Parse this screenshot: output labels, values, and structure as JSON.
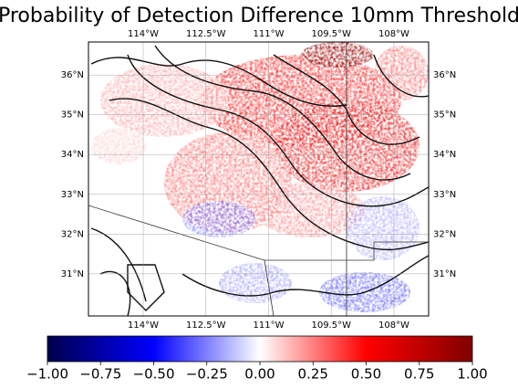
{
  "title": "Probability of Detection Difference 10mm Threshold",
  "map": {
    "lonlim": [
      -115.31,
      -107.17
    ],
    "latlim": [
      29.94,
      36.83
    ],
    "grid": true,
    "lon_ticks": [
      {
        "value": -114,
        "label": "114°W"
      },
      {
        "value": -112.5,
        "label": "112.5°W"
      },
      {
        "value": -111,
        "label": "111°W"
      },
      {
        "value": -109.5,
        "label": "109.5°W"
      },
      {
        "value": -108,
        "label": "108°W"
      }
    ],
    "lat_ticks": [
      {
        "value": 36,
        "label": "36°N"
      },
      {
        "value": 35,
        "label": "35°N"
      },
      {
        "value": 34,
        "label": "34°N"
      },
      {
        "value": 33,
        "label": "33°N"
      },
      {
        "value": 32,
        "label": "32°N"
      },
      {
        "value": 31,
        "label": "31°N"
      }
    ]
  },
  "colorbar": {
    "lim": [
      -1,
      1
    ],
    "colors": [
      "#00004c",
      "#0000ff",
      "#ffffff",
      "#ff0000",
      "#800000"
    ],
    "ticks": [
      {
        "value": -1,
        "label": "−1.00"
      },
      {
        "value": -0.75,
        "label": "−0.75"
      },
      {
        "value": -0.5,
        "label": "−0.50"
      },
      {
        "value": -0.25,
        "label": "−0.25"
      },
      {
        "value": 0,
        "label": "0.00"
      },
      0.25,
      {
        "value": 0.5,
        "label": "0.50"
      },
      0.75,
      {
        "value": 1,
        "label": "1.00"
      }
    ]
  }
}
